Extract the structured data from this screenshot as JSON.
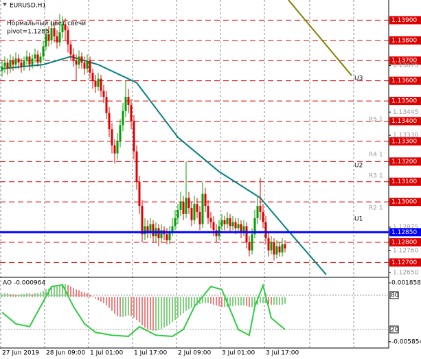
{
  "chart_data": [
    {
      "type": "candlestick",
      "title": "EURUSD,H1",
      "notes": [
        "Нормальный цвет свечи",
        "pivot=1.1285"
      ],
      "pivot_labels": [
        "U3",
        "U2",
        "U1",
        "R5 1",
        "R4 1",
        "R3 1",
        "R2 1"
      ],
      "up_color": "#00a000",
      "down_color": "#e00000",
      "open": [
        1.1365,
        1.1367,
        1.1369,
        1.1366,
        1.137,
        1.1368,
        1.1371,
        1.1369,
        1.1367,
        1.137,
        1.1372,
        1.1368,
        1.1371,
        1.1373,
        1.1369,
        1.1372,
        1.1377,
        1.1383,
        1.138,
        1.1386,
        1.1382,
        1.1379,
        1.1384,
        1.1388,
        1.1385,
        1.1378,
        1.1373,
        1.137,
        1.1368,
        1.1372,
        1.1369,
        1.1366,
        1.137,
        1.1364,
        1.136,
        1.1357,
        1.1361,
        1.1355,
        1.1352,
        1.1344,
        1.1336,
        1.1328,
        1.1324,
        1.133,
        1.1338,
        1.1345,
        1.1352,
        1.1348,
        1.134,
        1.1325,
        1.131,
        1.1298,
        1.1284,
        1.1288,
        1.1285,
        1.1289,
        1.1283,
        1.1287,
        1.1282,
        1.1286,
        1.1284,
        1.1281,
        1.1285,
        1.1288,
        1.1292,
        1.1296,
        1.13,
        1.1294,
        1.1302,
        1.1297,
        1.1291,
        1.1299,
        1.1295,
        1.1289,
        1.1304,
        1.1298,
        1.1292,
        1.129,
        1.1286,
        1.1283,
        1.1288,
        1.1291,
        1.1289,
        1.1292,
        1.1288,
        1.129,
        1.1287,
        1.1289,
        1.1285,
        1.1288,
        1.128,
        1.1276,
        1.1284,
        1.1292,
        1.1298,
        1.1295,
        1.129,
        1.1282,
        1.1276,
        1.128,
        1.1274,
        1.1278,
        1.1275,
        1.1279
      ],
      "high": [
        1.137,
        1.1372,
        1.1371,
        1.1373,
        1.1372,
        1.1374,
        1.1373,
        1.1371,
        1.1372,
        1.1375,
        1.1374,
        1.1373,
        1.1376,
        1.1375,
        1.1374,
        1.138,
        1.1386,
        1.1387,
        1.139,
        1.1389,
        1.1385,
        1.1393,
        1.1392,
        1.1391,
        1.1387,
        1.138,
        1.1376,
        1.1373,
        1.1375,
        1.1374,
        1.1372,
        1.1373,
        1.1372,
        1.1366,
        1.1363,
        1.1364,
        1.1363,
        1.1358,
        1.1355,
        1.1347,
        1.1339,
        1.1331,
        1.1334,
        1.1341,
        1.1349,
        1.136,
        1.1356,
        1.1351,
        1.1343,
        1.1328,
        1.1313,
        1.1301,
        1.1292,
        1.1291,
        1.1292,
        1.1291,
        1.129,
        1.1289,
        1.1289,
        1.1288,
        1.1287,
        1.1288,
        1.1292,
        1.1296,
        1.1299,
        1.1305,
        1.1303,
        1.132,
        1.1305,
        1.13,
        1.1303,
        1.1302,
        1.1298,
        1.131,
        1.1307,
        1.1301,
        1.1295,
        1.1293,
        1.1289,
        1.1291,
        1.1294,
        1.1293,
        1.1295,
        1.1294,
        1.1293,
        1.1292,
        1.1292,
        1.1291,
        1.1291,
        1.129,
        1.1283,
        1.1287,
        1.1296,
        1.1303,
        1.1312,
        1.1299,
        1.1293,
        1.1285,
        1.1283,
        1.1282,
        1.1281,
        1.128,
        1.1282,
        1.1281
      ],
      "low": [
        1.1362,
        1.1364,
        1.1363,
        1.1364,
        1.1365,
        1.1366,
        1.1366,
        1.1364,
        1.1365,
        1.1368,
        1.1365,
        1.1366,
        1.1369,
        1.1367,
        1.1366,
        1.137,
        1.1375,
        1.1377,
        1.1378,
        1.1379,
        1.1376,
        1.1377,
        1.1381,
        1.138,
        1.1374,
        1.137,
        1.1367,
        1.136,
        1.1366,
        1.1366,
        1.1363,
        1.1364,
        1.1361,
        1.1356,
        1.1354,
        1.1355,
        1.1352,
        1.1349,
        1.1341,
        1.1332,
        1.1324,
        1.1319,
        1.1321,
        1.1327,
        1.1335,
        1.1342,
        1.1344,
        1.1336,
        1.1321,
        1.1306,
        1.1294,
        1.128,
        1.1281,
        1.1282,
        1.1282,
        1.128,
        1.128,
        1.1278,
        1.128,
        1.1281,
        1.1279,
        1.1279,
        1.1283,
        1.1286,
        1.1289,
        1.1293,
        1.1291,
        1.1292,
        1.1294,
        1.1288,
        1.1289,
        1.1292,
        1.1286,
        1.1287,
        1.1295,
        1.1289,
        1.1287,
        1.1283,
        1.128,
        1.1281,
        1.1286,
        1.1286,
        1.1287,
        1.1285,
        1.1286,
        1.1284,
        1.1285,
        1.1282,
        1.1283,
        1.1277,
        1.1273,
        1.1274,
        1.1282,
        1.1289,
        1.1291,
        1.1287,
        1.1279,
        1.1273,
        1.1274,
        1.1271,
        1.1272,
        1.1273,
        1.1273,
        1.1275
      ],
      "close": [
        1.1367,
        1.1369,
        1.1366,
        1.137,
        1.1368,
        1.1371,
        1.1369,
        1.1367,
        1.137,
        1.1372,
        1.1368,
        1.1371,
        1.1373,
        1.1369,
        1.1372,
        1.1377,
        1.1383,
        1.138,
        1.1386,
        1.1382,
        1.1379,
        1.1384,
        1.1388,
        1.1385,
        1.1378,
        1.1373,
        1.137,
        1.1368,
        1.1372,
        1.1369,
        1.1366,
        1.137,
        1.1364,
        1.136,
        1.1357,
        1.1361,
        1.1355,
        1.1352,
        1.1344,
        1.1336,
        1.1328,
        1.1324,
        1.133,
        1.1338,
        1.1345,
        1.1352,
        1.1348,
        1.134,
        1.1325,
        1.131,
        1.1298,
        1.1284,
        1.1288,
        1.1285,
        1.1289,
        1.1283,
        1.1287,
        1.1282,
        1.1286,
        1.1284,
        1.1281,
        1.1285,
        1.1288,
        1.1292,
        1.1296,
        1.13,
        1.1294,
        1.1302,
        1.1297,
        1.1291,
        1.1299,
        1.1295,
        1.1289,
        1.1304,
        1.1298,
        1.1292,
        1.129,
        1.1286,
        1.1283,
        1.1288,
        1.1291,
        1.1289,
        1.1292,
        1.1288,
        1.129,
        1.1287,
        1.1289,
        1.1285,
        1.1288,
        1.128,
        1.1276,
        1.1284,
        1.1292,
        1.1298,
        1.1295,
        1.129,
        1.1282,
        1.1276,
        1.128,
        1.1274,
        1.1278,
        1.1275,
        1.1279,
        1.1277
      ],
      "ma": {
        "color": "#008080",
        "x": [
          0,
          15,
          25,
          35,
          49,
          64,
          79,
          94,
          104,
          118
        ],
        "values": [
          1.1366,
          1.1368,
          1.1372,
          1.1368,
          1.1359,
          1.1332,
          1.1315,
          1.1302,
          1.1286,
          1.1264
        ]
      },
      "ylim": [
        1.1263,
        1.14
      ],
      "yticks": [
        {
          "value": 1.13675,
          "label": "1.13675"
        },
        {
          "value": 1.13445,
          "label": "1.13445"
        },
        {
          "value": 1.1333,
          "label": "1.13330"
        },
        {
          "value": 1.12875,
          "label": "1.12875"
        },
        {
          "value": 1.1276,
          "label": "1.12760"
        },
        {
          "value": 1.1265,
          "label": "1.12650"
        }
      ],
      "levels": [
        {
          "value": 1.139,
          "label": "1.13900"
        },
        {
          "value": 1.138,
          "label": "1.13800"
        },
        {
          "value": 1.137,
          "label": "1.13700"
        },
        {
          "value": 1.136,
          "label": "1.13600"
        },
        {
          "value": 1.135,
          "label": "1.13500"
        },
        {
          "value": 1.134,
          "label": "1.13400"
        },
        {
          "value": 1.133,
          "label": "1.13300"
        },
        {
          "value": 1.132,
          "label": "1.13200"
        },
        {
          "value": 1.131,
          "label": "1.13100"
        },
        {
          "value": 1.13,
          "label": "1.13000"
        },
        {
          "value": 1.128,
          "label": "1.12800"
        },
        {
          "value": 1.127,
          "label": "1.12700"
        }
      ],
      "level_color": "#e00000",
      "current": {
        "value": 1.1285,
        "label": "1.12850",
        "color": "#0000ff"
      },
      "xticks": [
        {
          "value": 0,
          "label": "27 Jun 2019"
        },
        {
          "value": 16,
          "label": "28 Jun 09:00"
        },
        {
          "value": 32,
          "label": "1 Jul 01:00"
        },
        {
          "value": 48,
          "label": "1 Jul 17:00"
        },
        {
          "value": 64,
          "label": "2 Jul 09:00"
        },
        {
          "value": 80,
          "label": "3 Jul 01:00"
        },
        {
          "value": 96,
          "label": "3 Jul 17:00"
        }
      ]
    },
    {
      "type": "ao",
      "title": "AO -0.000964",
      "values": [
        0.0004,
        0.0005,
        0.0005,
        0.0004,
        0.0004,
        0.0003,
        0.0003,
        0.0004,
        0.0004,
        0.0005,
        0.0005,
        0.0004,
        0.0005,
        0.0005,
        0.0006,
        0.0008,
        0.001,
        0.0011,
        0.0013,
        0.0014,
        0.0015,
        0.0016,
        0.0017,
        0.0017,
        0.0016,
        0.0014,
        0.0012,
        0.001,
        0.0009,
        0.0007,
        0.0006,
        0.0005,
        0.0003,
        0.0001,
        -0.0002,
        -0.0004,
        -0.0006,
        -0.0008,
        -0.0011,
        -0.0014,
        -0.0018,
        -0.0022,
        -0.0025,
        -0.0026,
        -0.0026,
        -0.0025,
        -0.0024,
        -0.0025,
        -0.0027,
        -0.003,
        -0.0033,
        -0.0037,
        -0.004,
        -0.0042,
        -0.0043,
        -0.0044,
        -0.0044,
        -0.0043,
        -0.0042,
        -0.004,
        -0.0038,
        -0.0036,
        -0.0033,
        -0.003,
        -0.0027,
        -0.0024,
        -0.0021,
        -0.0018,
        -0.0016,
        -0.0014,
        -0.0012,
        -0.001,
        -0.0009,
        -0.0008,
        -0.0008,
        -0.0008,
        -0.0009,
        -0.001,
        -0.0011,
        -0.0012,
        -0.0013,
        -0.0013,
        -0.0013,
        -0.0012,
        -0.0012,
        -0.0011,
        -0.0011,
        -0.0011,
        -0.0011,
        -0.0012,
        -0.0013,
        -0.0013,
        -0.0012,
        -0.001,
        -0.0008,
        -0.0008,
        -0.0008,
        -0.0009,
        -0.001,
        -0.001,
        -0.001,
        -0.001,
        -0.001,
        -0.0009
      ],
      "up_color": "#00a000",
      "down_color": "#e00000",
      "ylim": [
        -0.0065,
        0.0025
      ],
      "yticks": [
        0.001858,
        -0.005854
      ],
      "stoch": {
        "color": "#2ecc40",
        "axis": "y2",
        "x": [
          0,
          5,
          10,
          14,
          18,
          22,
          26,
          30,
          34,
          40,
          46,
          50,
          56,
          62,
          66,
          70,
          76,
          80,
          86,
          90,
          92,
          95,
          98,
          103
        ],
        "values": [
          50,
          30,
          25,
          60,
          95,
          98,
          60,
          30,
          15,
          10,
          8,
          25,
          10,
          8,
          20,
          60,
          95,
          90,
          20,
          10,
          60,
          97,
          40,
          20
        ]
      },
      "y2lim": [
        -10,
        110
      ],
      "y2ticks": [
        80,
        20
      ]
    }
  ]
}
